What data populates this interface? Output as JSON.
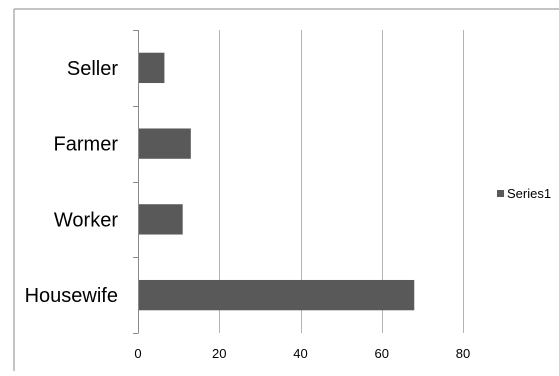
{
  "chart_data": {
    "type": "bar",
    "orientation": "horizontal",
    "categories": [
      "Seller",
      "Farmer",
      "Worker",
      "Housewife"
    ],
    "series": [
      {
        "name": "Series1",
        "values": [
          6.5,
          13,
          11,
          68
        ]
      }
    ],
    "xlim": [
      0,
      80
    ],
    "xticks": [
      "0",
      "20",
      "40",
      "60",
      "80"
    ],
    "grid": true,
    "legend_position": "right",
    "bar_color": "#595959",
    "title": "",
    "xlabel": "",
    "ylabel": ""
  }
}
